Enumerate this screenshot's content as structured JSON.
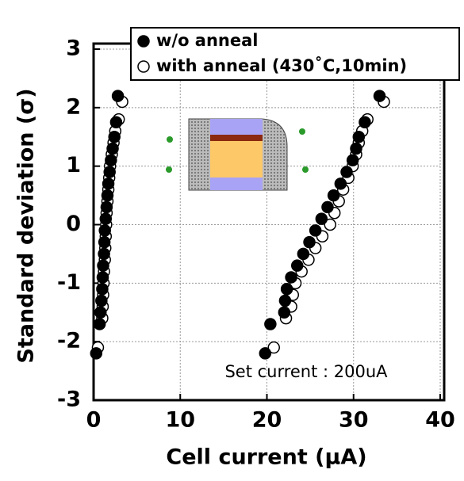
{
  "chart_data": {
    "type": "scatter",
    "xlabel": "Cell current (μA)",
    "ylabel": "Standard deviation  (σ)",
    "annotation": "Set current : 200uA",
    "xlim": [
      0,
      40
    ],
    "xticks": [
      0,
      10,
      20,
      30,
      40
    ],
    "ylim": [
      -3,
      3
    ],
    "yticks": [
      -3,
      -2,
      -1,
      0,
      1,
      2,
      3
    ],
    "grid": true,
    "legend": "top-right",
    "series": [
      {
        "name": "with anneal (430˚C,10min)",
        "color": "#000000",
        "filled": false,
        "x": [
          0.5,
          1.0,
          1.05,
          1.1,
          1.15,
          1.2,
          1.3,
          1.35,
          1.4,
          1.45,
          1.5,
          1.6,
          1.7,
          1.8,
          1.9,
          2.1,
          2.3,
          2.5,
          2.9,
          3.3,
          20.8,
          22.2,
          22.8,
          23.0,
          23.3,
          24.0,
          24.8,
          25.6,
          26.4,
          27.3,
          27.8,
          28.3,
          28.8,
          29.4,
          29.9,
          30.3,
          30.6,
          31.0,
          31.6,
          33.5
        ],
        "values": [
          -2.1,
          -1.6,
          -1.4,
          -1.2,
          -1.0,
          -0.8,
          -0.6,
          -0.4,
          -0.2,
          0,
          0.2,
          0.4,
          0.6,
          0.8,
          1.0,
          1.2,
          1.4,
          1.6,
          1.8,
          2.1,
          -2.1,
          -1.6,
          -1.4,
          -1.2,
          -1.0,
          -0.8,
          -0.6,
          -0.4,
          -0.2,
          0,
          0.2,
          0.4,
          0.6,
          0.8,
          1.0,
          1.2,
          1.4,
          1.6,
          1.8,
          2.1
        ]
      },
      {
        "name": "w/o anneal",
        "color": "#000000",
        "filled": true,
        "x": [
          0.3,
          0.7,
          0.8,
          0.9,
          1.0,
          1.05,
          1.1,
          1.2,
          1.25,
          1.3,
          1.4,
          1.5,
          1.6,
          1.7,
          1.85,
          2.0,
          2.2,
          2.4,
          2.6,
          2.8,
          19.8,
          20.4,
          22.0,
          22.1,
          22.3,
          22.8,
          23.5,
          24.2,
          24.9,
          25.6,
          26.3,
          27.0,
          27.7,
          28.5,
          29.2,
          29.9,
          30.3,
          30.6,
          31.3,
          33.0
        ],
        "values": [
          -2.2,
          -1.7,
          -1.5,
          -1.3,
          -1.1,
          -0.9,
          -0.7,
          -0.5,
          -0.3,
          -0.1,
          0.1,
          0.3,
          0.5,
          0.7,
          0.9,
          1.1,
          1.3,
          1.5,
          1.75,
          2.2,
          -2.2,
          -1.7,
          -1.5,
          -1.3,
          -1.1,
          -0.9,
          -0.7,
          -0.5,
          -0.3,
          -0.1,
          0.1,
          0.3,
          0.5,
          0.7,
          0.9,
          1.1,
          1.3,
          1.5,
          1.75,
          2.2
        ]
      }
    ]
  }
}
